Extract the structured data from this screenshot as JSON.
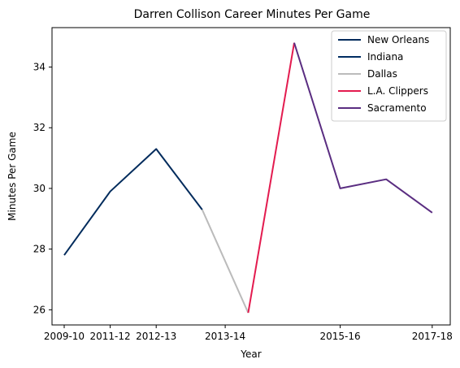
{
  "chart_data": {
    "type": "line",
    "title": "Darren Collison Career Minutes Per Game",
    "xlabel": "Year",
    "ylabel": "Minutes Per Game",
    "x_ticks": [
      "2009-10",
      "2011-12",
      "2012-13",
      "2013-14",
      "2015-16",
      "2017-18"
    ],
    "y_ticks": [
      26,
      28,
      30,
      32,
      34
    ],
    "ylim": [
      25.5,
      35.3
    ],
    "grid": false,
    "legend_position": "top-right",
    "series": [
      {
        "name": "New Orleans",
        "color": "#002B5C",
        "points": [
          [
            0,
            27.8
          ],
          [
            1,
            29.9
          ],
          [
            2,
            31.3
          ],
          [
            3,
            29.3
          ]
        ]
      },
      {
        "name": "Indiana",
        "color": "#002D62",
        "points": []
      },
      {
        "name": "Dallas",
        "color": "#BBBBBB",
        "points": [
          [
            3,
            29.3
          ],
          [
            4,
            25.9
          ]
        ]
      },
      {
        "name": "L.A. Clippers",
        "color": "#E31B4F",
        "points": [
          [
            4,
            25.9
          ],
          [
            5,
            34.8
          ]
        ]
      },
      {
        "name": "Sacramento",
        "color": "#5A2D81",
        "points": [
          [
            5,
            34.8
          ],
          [
            6,
            30.0
          ],
          [
            7,
            30.3
          ],
          [
            8,
            29.2
          ]
        ]
      }
    ]
  }
}
